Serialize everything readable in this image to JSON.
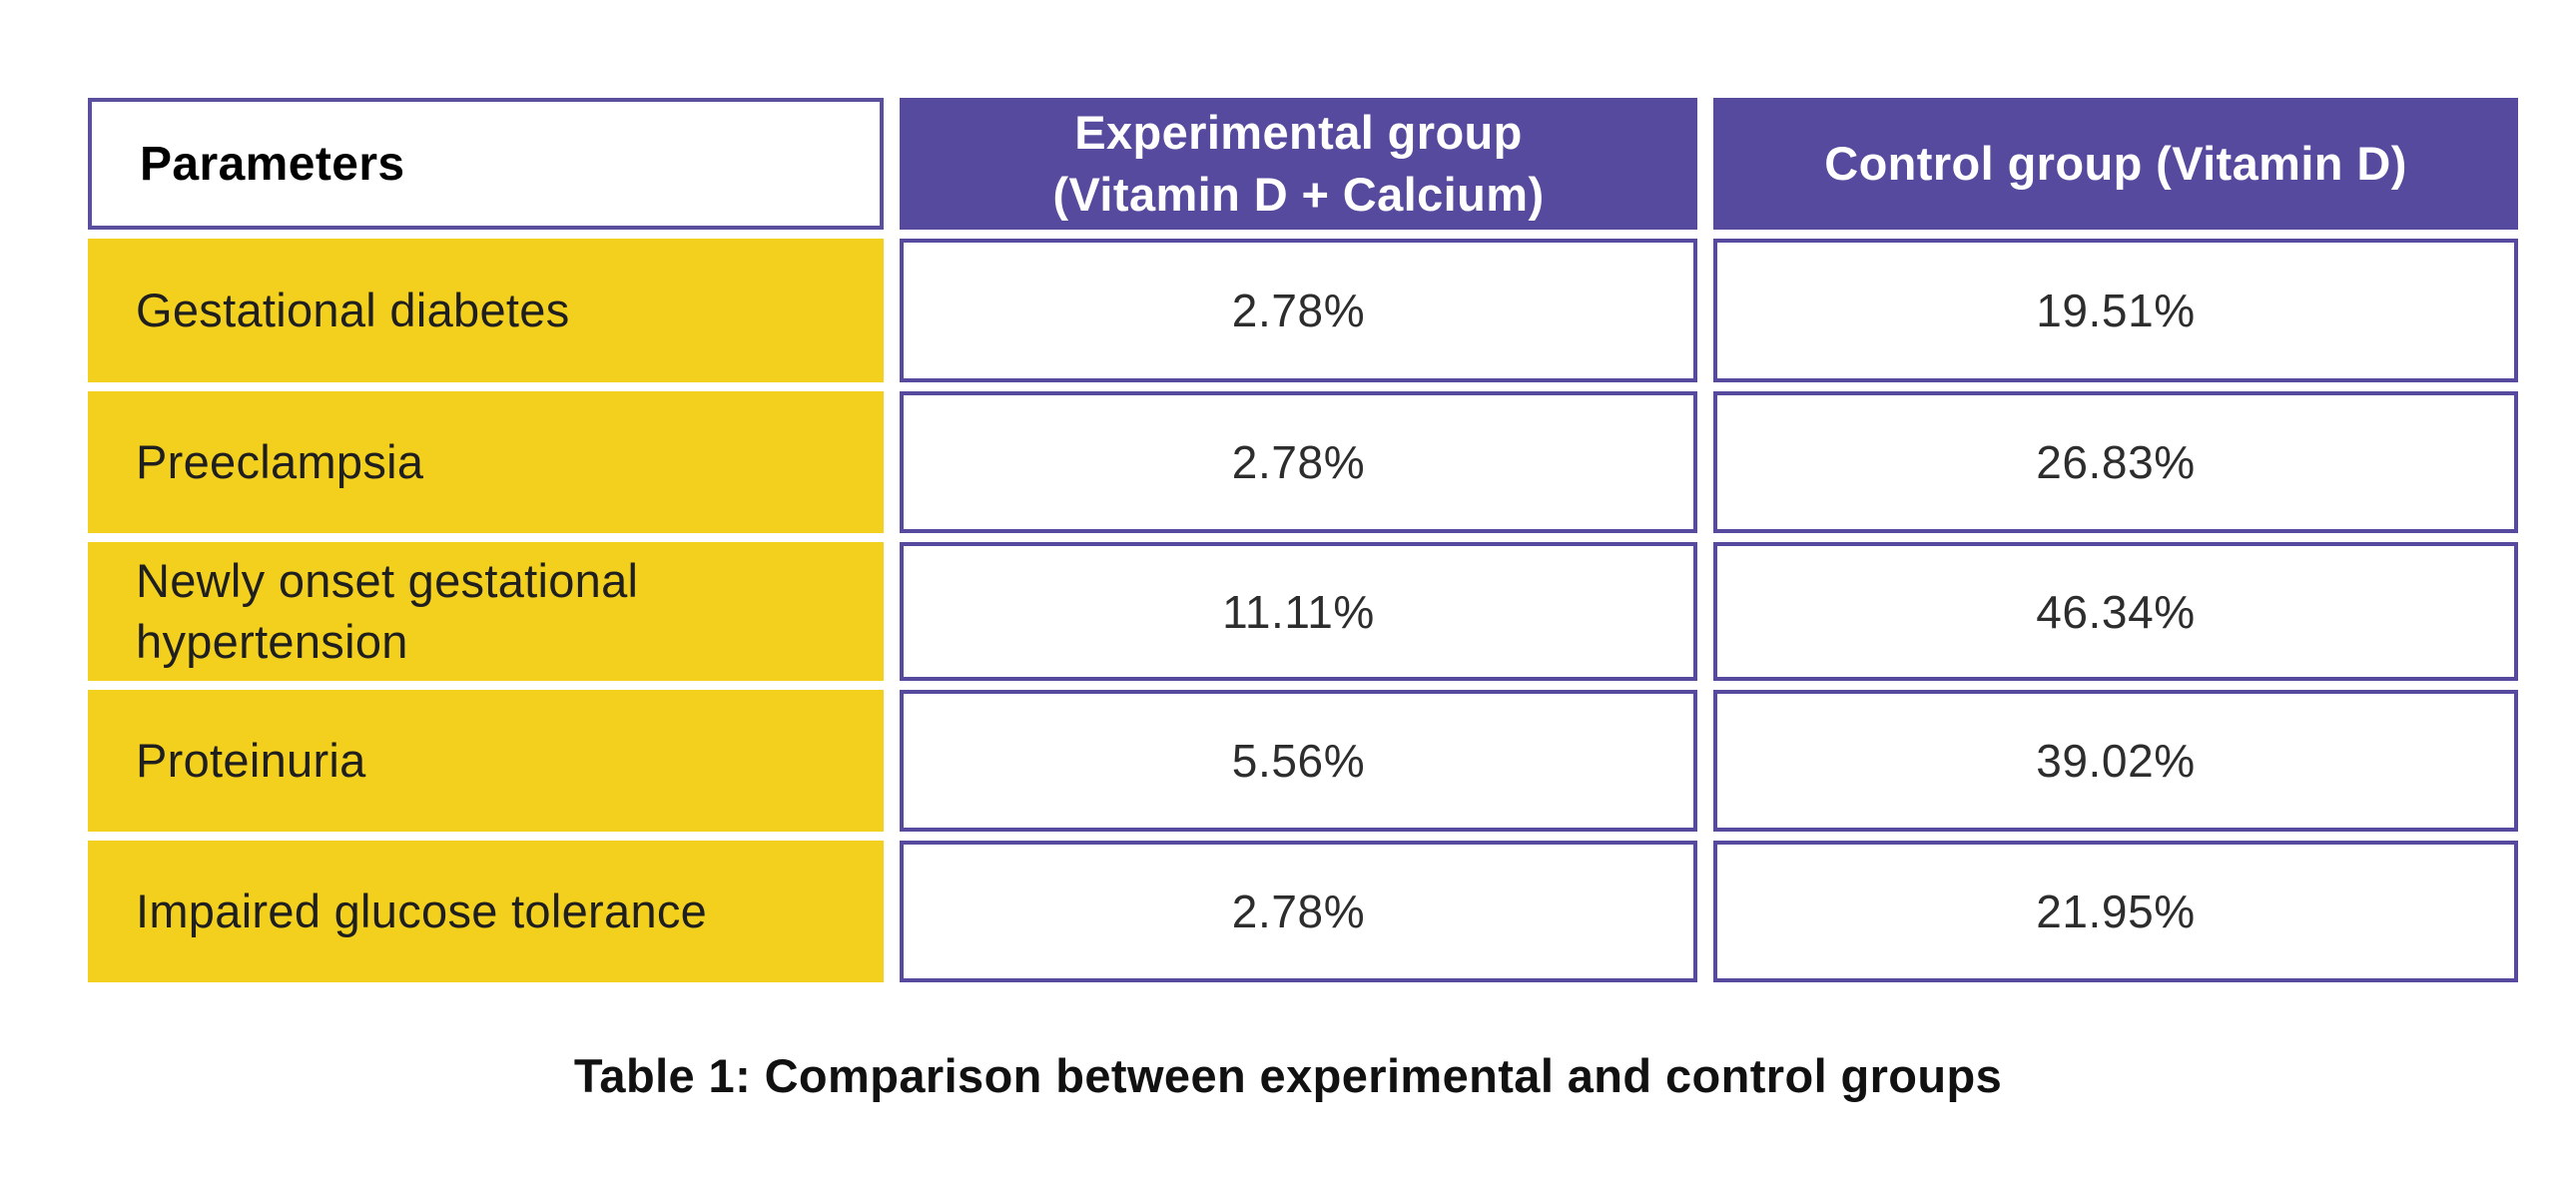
{
  "table": {
    "header": {
      "parameters": "Parameters",
      "experimental_line1": "Experimental group",
      "experimental_line2": "(Vitamin D + Calcium)",
      "control": "Control group (Vitamin D)"
    },
    "rows": [
      {
        "parameter": "Gestational diabetes",
        "experimental": "2.78%",
        "control": "19.51%"
      },
      {
        "parameter": "Preeclampsia",
        "experimental": "2.78%",
        "control": "26.83%"
      },
      {
        "parameter": "Newly onset gestational hypertension",
        "experimental": "11.11%",
        "control": "46.34%"
      },
      {
        "parameter": "Proteinuria",
        "experimental": "5.56%",
        "control": "39.02%"
      },
      {
        "parameter": "Impaired glucose tolerance",
        "experimental": "2.78%",
        "control": "21.95%"
      }
    ]
  },
  "caption": "Table 1: Comparison between experimental and control groups",
  "colors": {
    "header_purple": "#564A9E",
    "border_purple": "#5A4E9F",
    "row_yellow": "#F4D01E",
    "header_text": "#FFFFFF",
    "label_text": "#1F1F1F",
    "value_text": "#2D2D2D",
    "caption_text": "#111111",
    "background": "#FFFFFF"
  },
  "chart_data": {
    "type": "table",
    "title": "Table 1: Comparison between experimental and control groups",
    "categories": [
      "Gestational diabetes",
      "Preeclampsia",
      "Newly onset gestational hypertension",
      "Proteinuria",
      "Impaired glucose tolerance"
    ],
    "series": [
      {
        "name": "Experimental group (Vitamin D + Calcium)",
        "values": [
          2.78,
          2.78,
          11.11,
          5.56,
          2.78
        ],
        "unit": "%"
      },
      {
        "name": "Control group (Vitamin D)",
        "values": [
          19.51,
          26.83,
          46.34,
          39.02,
          21.95
        ],
        "unit": "%"
      }
    ],
    "layout": "3-column comparison table, yellow parameter column, purple header row, caption below"
  }
}
